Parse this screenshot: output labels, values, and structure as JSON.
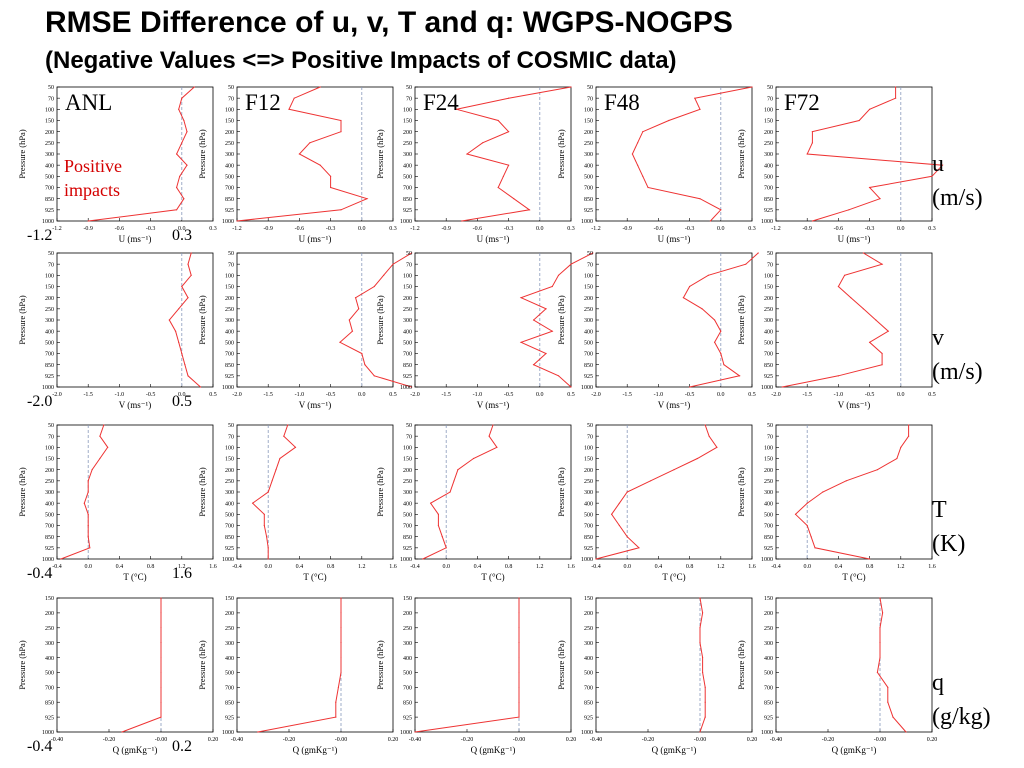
{
  "slide": {
    "title": "RMSE Difference of u, v, T and q: WGPS-NOGPS",
    "subtitle": "(Negative Values <=> Positive Impacts of COSMIC data)"
  },
  "columns": [
    "ANL",
    "F12",
    "F24",
    "F48",
    "F72"
  ],
  "annotation": {
    "line1": "Positive",
    "line2": "impacts",
    "color": "#d40000"
  },
  "colors": {
    "line": "#ee3333",
    "ref_line": "#8899bb",
    "axis": "#000000"
  },
  "chart_data": [
    {
      "type": "line",
      "variable": "u",
      "row_label": {
        "var": "u",
        "unit": "(m/s)"
      },
      "xlabel": "U (ms⁻¹)",
      "ylabel": "Pressure (hPa)",
      "xlim": [
        -1.2,
        0.3
      ],
      "xticks": [
        -1.2,
        -0.9,
        -0.6,
        -0.3,
        0.0,
        0.3
      ],
      "xtick_labels": [
        "-1.2",
        "-0.9",
        "-0.6",
        "-0.3",
        "0.0",
        "0.3"
      ],
      "range_labels": [
        "-1.2",
        "0.3"
      ],
      "pressure_levels": [
        50,
        70,
        100,
        150,
        200,
        250,
        300,
        400,
        500,
        700,
        850,
        925,
        1000
      ],
      "series": [
        {
          "values": [
            0.12,
            0.0,
            -0.03,
            0.02,
            0.05,
            0.0,
            -0.05,
            0.05,
            -0.02,
            -0.05,
            0.02,
            -0.05,
            -0.9
          ]
        },
        {
          "values": [
            -0.4,
            -0.65,
            -0.7,
            -0.2,
            -0.2,
            -0.5,
            -0.6,
            -0.4,
            -0.3,
            -0.3,
            0.05,
            -0.2,
            -1.2
          ]
        },
        {
          "values": [
            0.3,
            -0.3,
            -0.8,
            -0.4,
            -0.3,
            -0.55,
            -0.7,
            -0.3,
            -0.35,
            -0.4,
            -0.25,
            -0.1,
            -0.75
          ]
        },
        {
          "values": [
            0.3,
            -0.25,
            -0.2,
            -0.5,
            -0.75,
            -0.8,
            -0.85,
            -0.8,
            -0.75,
            -0.7,
            -0.2,
            0.0,
            -0.1
          ]
        },
        {
          "values": [
            -0.05,
            -0.05,
            -0.3,
            -0.4,
            -0.85,
            -0.85,
            -0.9,
            0.4,
            0.3,
            -0.3,
            -0.2,
            -0.5,
            -0.85
          ]
        }
      ]
    },
    {
      "type": "line",
      "variable": "v",
      "row_label": {
        "var": "v",
        "unit": "(m/s)"
      },
      "xlabel": "V (ms⁻¹)",
      "ylabel": "Pressure (hPa)",
      "xlim": [
        -2.0,
        0.5
      ],
      "xticks": [
        -2.0,
        -1.5,
        -1.0,
        -0.5,
        0.0,
        0.5
      ],
      "xtick_labels": [
        "-2.0",
        "-1.5",
        "-1.0",
        "-0.5",
        "0.0",
        "0.5"
      ],
      "range_labels": [
        "-2.0",
        "0.5"
      ],
      "pressure_levels": [
        50,
        70,
        100,
        150,
        200,
        250,
        300,
        400,
        500,
        700,
        850,
        925,
        1000
      ],
      "series": [
        {
          "values": [
            0.15,
            0.1,
            0.15,
            0.0,
            0.1,
            -0.05,
            -0.2,
            -0.1,
            -0.05,
            0.0,
            0.05,
            0.1,
            0.3
          ]
        },
        {
          "values": [
            0.8,
            0.5,
            0.35,
            0.2,
            -0.1,
            -0.05,
            -0.2,
            -0.15,
            -0.35,
            0.0,
            0.05,
            0.2,
            0.8
          ]
        },
        {
          "values": [
            0.85,
            0.5,
            0.3,
            0.2,
            -0.3,
            0.1,
            -0.1,
            0.2,
            -0.3,
            0.1,
            -0.1,
            0.3,
            0.5
          ]
        },
        {
          "values": [
            0.6,
            0.4,
            -0.2,
            -0.5,
            -0.6,
            -0.3,
            -0.1,
            0.0,
            -0.1,
            0.0,
            0.05,
            0.3,
            -0.5
          ]
        },
        {
          "values": [
            -0.6,
            -0.3,
            -0.9,
            -1.0,
            -0.8,
            -0.6,
            -0.4,
            -0.2,
            -0.5,
            -0.3,
            -0.3,
            -1.0,
            -1.9
          ]
        }
      ]
    },
    {
      "type": "line",
      "variable": "T",
      "row_label": {
        "var": "T",
        "unit": "(K)"
      },
      "xlabel": "T (°C)",
      "ylabel": "Pressure (hPa)",
      "xlim": [
        -0.4,
        1.6
      ],
      "xticks": [
        -0.4,
        0.0,
        0.4,
        0.8,
        1.2,
        1.6
      ],
      "xtick_labels": [
        "-0.4",
        "0.0",
        "0.4",
        "0.8",
        "1.2",
        "1.6"
      ],
      "range_labels": [
        "-0.4",
        "1.6"
      ],
      "pressure_levels": [
        50,
        70,
        100,
        150,
        200,
        250,
        300,
        400,
        500,
        700,
        850,
        925,
        1000
      ],
      "series": [
        {
          "values": [
            0.2,
            0.15,
            0.25,
            0.15,
            0.05,
            0.0,
            0.0,
            -0.05,
            0.0,
            0.0,
            0.0,
            0.02,
            -0.35
          ]
        },
        {
          "values": [
            0.25,
            0.2,
            0.35,
            0.15,
            0.1,
            0.05,
            0.0,
            -0.2,
            -0.05,
            -0.05,
            -0.02,
            0.0,
            0.0
          ]
        },
        {
          "values": [
            0.6,
            0.55,
            0.65,
            0.35,
            0.15,
            0.1,
            0.05,
            -0.2,
            -0.1,
            -0.1,
            -0.05,
            0.0,
            -0.3
          ]
        },
        {
          "values": [
            1.0,
            1.05,
            1.15,
            0.9,
            0.6,
            0.3,
            0.0,
            -0.1,
            -0.2,
            -0.1,
            0.0,
            0.15,
            -0.4
          ]
        },
        {
          "values": [
            1.3,
            1.3,
            1.2,
            1.15,
            0.9,
            0.5,
            0.2,
            0.0,
            -0.15,
            0.0,
            0.05,
            0.1,
            0.8
          ]
        }
      ]
    },
    {
      "type": "line",
      "variable": "q",
      "row_label": {
        "var": "q",
        "unit": "(g/kg)"
      },
      "xlabel": "Q (gmKg⁻¹)",
      "ylabel": "Pressure (hPa)",
      "xlim": [
        -0.4,
        0.2
      ],
      "xticks": [
        -0.4,
        -0.2,
        0.0,
        0.2
      ],
      "xtick_labels": [
        "-0.40",
        "-0.20",
        "-0.00",
        "0.20"
      ],
      "range_labels": [
        "-0.4",
        "0.2"
      ],
      "pressure_levels": [
        150,
        200,
        250,
        300,
        400,
        500,
        700,
        850,
        925,
        1000
      ],
      "series": [
        {
          "values": [
            0.0,
            0.0,
            0.0,
            0.0,
            0.0,
            0.0,
            0.0,
            0.0,
            0.0,
            -0.15
          ]
        },
        {
          "values": [
            0.0,
            0.0,
            0.0,
            0.0,
            0.0,
            0.0,
            -0.01,
            -0.02,
            -0.02,
            -0.32
          ]
        },
        {
          "values": [
            0.0,
            0.0,
            0.0,
            0.0,
            0.0,
            0.0,
            0.0,
            0.0,
            0.0,
            -0.4
          ]
        },
        {
          "values": [
            0.0,
            0.01,
            0.0,
            0.0,
            0.01,
            0.01,
            0.02,
            0.02,
            0.02,
            0.0
          ]
        },
        {
          "values": [
            0.0,
            0.01,
            0.0,
            0.0,
            0.0,
            -0.01,
            0.03,
            0.03,
            0.05,
            0.1
          ]
        }
      ]
    }
  ]
}
